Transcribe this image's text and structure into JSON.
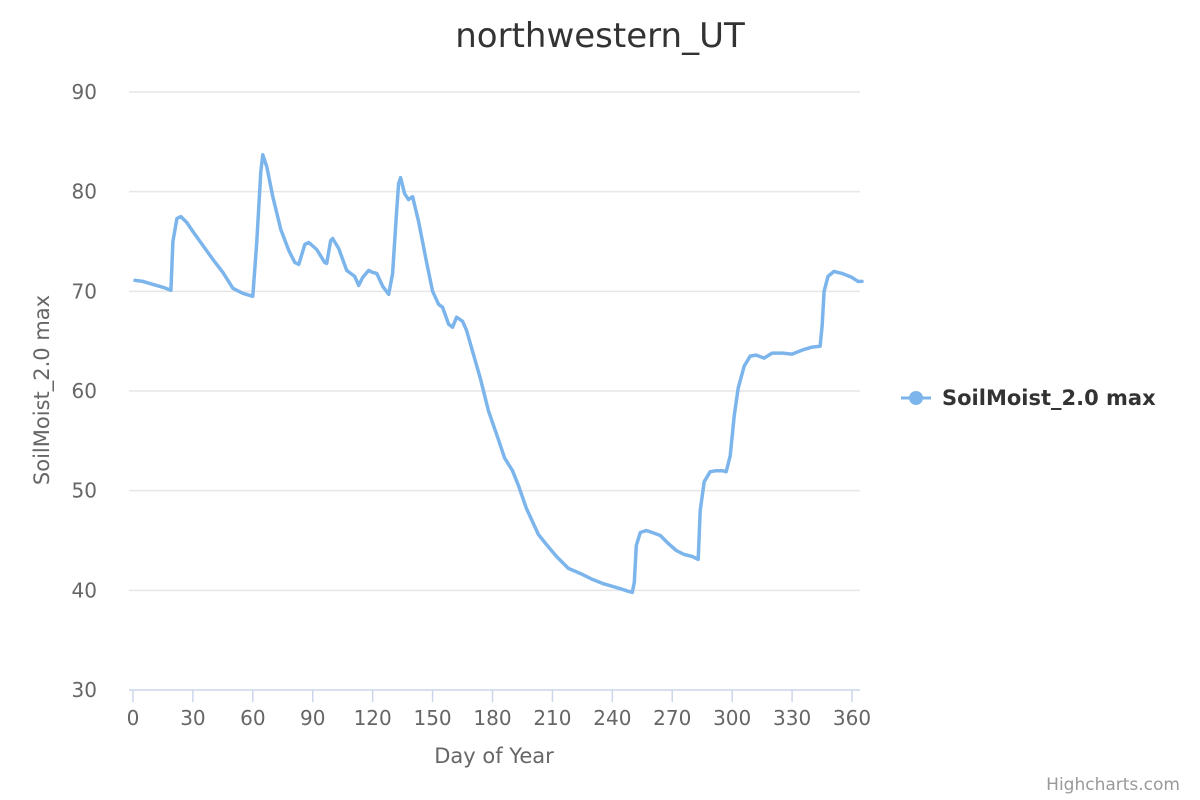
{
  "chart_data": {
    "type": "line",
    "title": "northwestern_UT",
    "xlabel": "Day of Year",
    "ylabel": "SoilMoist_2.0 max",
    "xlim": [
      0,
      366
    ],
    "ylim": [
      30,
      90
    ],
    "x_ticks": [
      "0",
      "30",
      "60",
      "90",
      "120",
      "150",
      "180",
      "210",
      "240",
      "270",
      "300",
      "330",
      "360"
    ],
    "y_ticks": [
      "30",
      "40",
      "50",
      "60",
      "70",
      "80",
      "90"
    ],
    "grid": true,
    "legend_position": "right",
    "series": [
      {
        "name": "SoilMoist_2.0 max",
        "color": "#7cb5ec",
        "points": [
          [
            1,
            71.1
          ],
          [
            5,
            71.0
          ],
          [
            10,
            70.7
          ],
          [
            15,
            70.4
          ],
          [
            19,
            70.1
          ],
          [
            20,
            75.0
          ],
          [
            22,
            77.3
          ],
          [
            24,
            77.5
          ],
          [
            27,
            76.9
          ],
          [
            30,
            76.0
          ],
          [
            35,
            74.6
          ],
          [
            40,
            73.2
          ],
          [
            45,
            71.9
          ],
          [
            50,
            70.3
          ],
          [
            55,
            69.8
          ],
          [
            60,
            69.5
          ],
          [
            62,
            75.0
          ],
          [
            64,
            82.0
          ],
          [
            65,
            83.7
          ],
          [
            67,
            82.5
          ],
          [
            70,
            79.5
          ],
          [
            74,
            76.2
          ],
          [
            78,
            74.1
          ],
          [
            81,
            72.9
          ],
          [
            83,
            72.7
          ],
          [
            86,
            74.7
          ],
          [
            88,
            74.9
          ],
          [
            92,
            74.2
          ],
          [
            96,
            72.9
          ],
          [
            97,
            72.8
          ],
          [
            99,
            75.1
          ],
          [
            100,
            75.3
          ],
          [
            103,
            74.3
          ],
          [
            107,
            72.1
          ],
          [
            111,
            71.5
          ],
          [
            113,
            70.6
          ],
          [
            115,
            71.4
          ],
          [
            118,
            72.1
          ],
          [
            120,
            71.9
          ],
          [
            122,
            71.8
          ],
          [
            125,
            70.5
          ],
          [
            128,
            69.7
          ],
          [
            130,
            71.8
          ],
          [
            132,
            78.0
          ],
          [
            133,
            80.8
          ],
          [
            134,
            81.4
          ],
          [
            136,
            79.8
          ],
          [
            138,
            79.2
          ],
          [
            140,
            79.5
          ],
          [
            143,
            77.0
          ],
          [
            147,
            72.9
          ],
          [
            150,
            70.0
          ],
          [
            153,
            68.7
          ],
          [
            155,
            68.4
          ],
          [
            158,
            66.7
          ],
          [
            160,
            66.4
          ],
          [
            162,
            67.4
          ],
          [
            165,
            67.0
          ],
          [
            167,
            66.1
          ],
          [
            170,
            64.0
          ],
          [
            174,
            61.2
          ],
          [
            178,
            58.0
          ],
          [
            183,
            55.1
          ],
          [
            186,
            53.3
          ],
          [
            190,
            52.0
          ],
          [
            193,
            50.5
          ],
          [
            197,
            48.2
          ],
          [
            200,
            46.9
          ],
          [
            203,
            45.6
          ],
          [
            207,
            44.6
          ],
          [
            212,
            43.4
          ],
          [
            218,
            42.2
          ],
          [
            225,
            41.6
          ],
          [
            230,
            41.1
          ],
          [
            235,
            40.7
          ],
          [
            240,
            40.4
          ],
          [
            245,
            40.1
          ],
          [
            248,
            39.9
          ],
          [
            250,
            39.8
          ],
          [
            251,
            40.8
          ],
          [
            252,
            44.5
          ],
          [
            254,
            45.8
          ],
          [
            257,
            46.0
          ],
          [
            260,
            45.8
          ],
          [
            264,
            45.5
          ],
          [
            268,
            44.7
          ],
          [
            272,
            44.0
          ],
          [
            276,
            43.6
          ],
          [
            280,
            43.4
          ],
          [
            283,
            43.1
          ],
          [
            284,
            48.0
          ],
          [
            286,
            50.9
          ],
          [
            289,
            51.9
          ],
          [
            292,
            52.0
          ],
          [
            295,
            52.0
          ],
          [
            297,
            51.9
          ],
          [
            299,
            53.5
          ],
          [
            301,
            57.5
          ],
          [
            303,
            60.3
          ],
          [
            306,
            62.5
          ],
          [
            309,
            63.5
          ],
          [
            312,
            63.6
          ],
          [
            316,
            63.3
          ],
          [
            320,
            63.8
          ],
          [
            325,
            63.8
          ],
          [
            330,
            63.7
          ],
          [
            335,
            64.1
          ],
          [
            340,
            64.4
          ],
          [
            344,
            64.5
          ],
          [
            345,
            66.5
          ],
          [
            346,
            70.0
          ],
          [
            348,
            71.5
          ],
          [
            351,
            72.0
          ],
          [
            355,
            71.8
          ],
          [
            360,
            71.4
          ],
          [
            363,
            71.0
          ],
          [
            365,
            71.0
          ]
        ]
      }
    ]
  },
  "credits": "Highcharts.com"
}
